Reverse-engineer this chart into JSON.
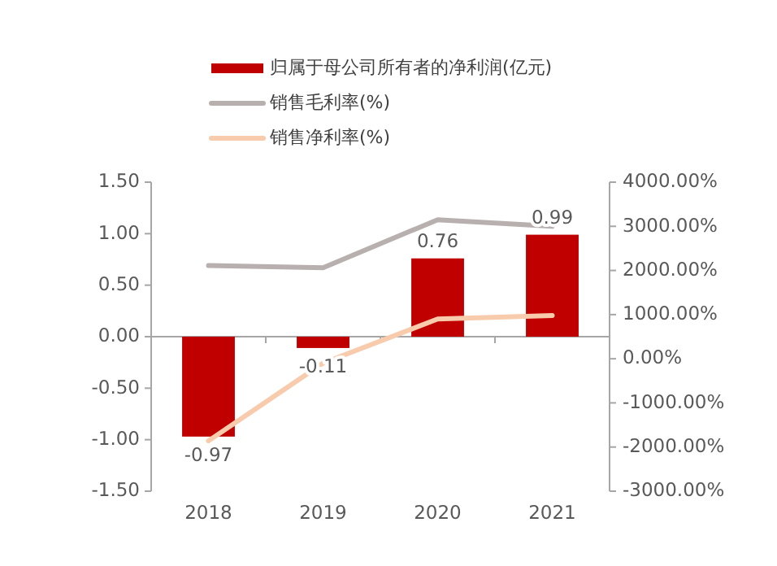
{
  "chart_data": {
    "type": "bar",
    "categories": [
      "2018",
      "2019",
      "2020",
      "2021"
    ],
    "series": [
      {
        "name": "归属于母公司所有者的净利润(亿元)",
        "color": "#c00000",
        "values": [
          -0.97,
          -0.11,
          0.76,
          0.99
        ],
        "value_labels": [
          "-0.97",
          "-0.11",
          "0.76",
          "0.99"
        ]
      },
      {
        "name": "销售毛利率(%)",
        "type": "line",
        "axis": "y2",
        "color": "#b8b0ae",
        "values": [
          2110,
          2060,
          3150,
          3000
        ]
      },
      {
        "name": "销售净利率(%)",
        "type": "line",
        "axis": "y2",
        "color": "#f8cbad",
        "values": [
          -1860,
          -100,
          900,
          980
        ]
      }
    ],
    "ylim": [
      -1.5,
      1.5
    ],
    "yticks": [
      {
        "value": -1.5,
        "label": "-1.50"
      },
      {
        "value": -1,
        "label": "-1.00"
      },
      {
        "value": -0.5,
        "label": "-0.50"
      },
      {
        "value": 0,
        "label": "0.00"
      },
      {
        "value": 0.5,
        "label": "0.50"
      },
      {
        "value": 1,
        "label": "1.00"
      },
      {
        "value": 1.5,
        "label": "1.50"
      }
    ],
    "y2lim": [
      -3000,
      4000
    ],
    "y2ticks": [
      {
        "value": -3000,
        "label": "-3000.00%"
      },
      {
        "value": -2000,
        "label": "-2000.00%"
      },
      {
        "value": -1000,
        "label": "-1000.00%"
      },
      {
        "value": 0,
        "label": "0.00%"
      },
      {
        "value": 1000,
        "label": "1000.00%"
      },
      {
        "value": 2000,
        "label": "2000.00%"
      },
      {
        "value": 3000,
        "label": "3000.00%"
      },
      {
        "value": 4000,
        "label": "4000.00%"
      }
    ],
    "legend": "top",
    "marker": "none",
    "line_style": "solid"
  }
}
